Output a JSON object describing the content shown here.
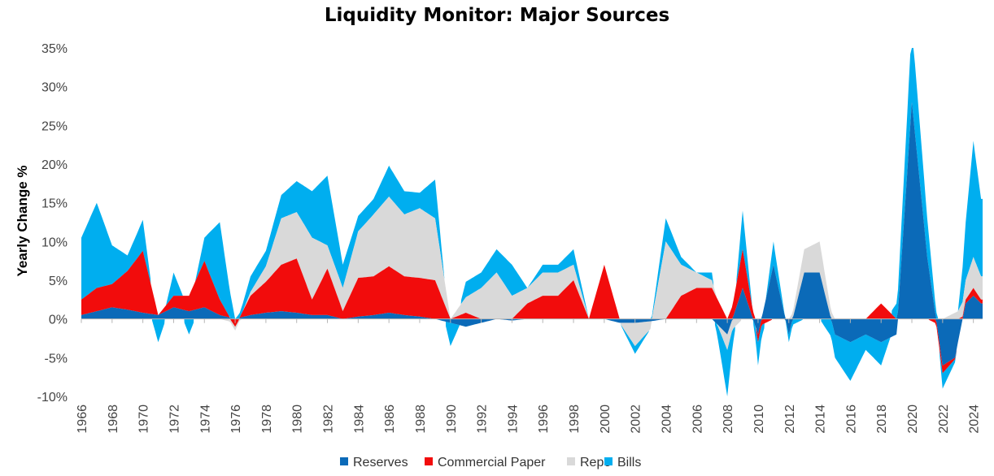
{
  "chart_data": {
    "type": "area",
    "title": "Liquidity Monitor: Major Sources",
    "ylabel": "Yearly Change %",
    "xlabel": "",
    "xlim": [
      1966,
      2024.6
    ],
    "ylim": [
      -10,
      35
    ],
    "yticks": [
      -10,
      -5,
      0,
      5,
      10,
      15,
      20,
      25,
      30,
      35
    ],
    "ytick_labels": [
      "-10%",
      "-5%",
      "0%",
      "5%",
      "10%",
      "15%",
      "20%",
      "25%",
      "30%",
      "35%"
    ],
    "xticks": [
      1966,
      1968,
      1970,
      1972,
      1974,
      1976,
      1978,
      1980,
      1982,
      1984,
      1986,
      1988,
      1990,
      1992,
      1994,
      1996,
      1998,
      2000,
      2002,
      2004,
      2006,
      2008,
      2010,
      2012,
      2014,
      2016,
      2018,
      2020,
      2022,
      2024
    ],
    "xtick_labels": [
      "1966",
      "1968",
      "1970",
      "1972",
      "1974",
      "1976",
      "1978",
      "1980",
      "1982",
      "1984",
      "1986",
      "1988",
      "1990",
      "1992",
      "1994",
      "1996",
      "1998",
      "2000",
      "2002",
      "2004",
      "2006",
      "2008",
      "2010",
      "2012",
      "2014",
      "2016",
      "2018",
      "2020",
      "2022",
      "2024"
    ],
    "stacked": true,
    "grid": false,
    "legend_position": "bottom-center",
    "series": [
      {
        "name": "Reserves",
        "color": "#0B6AB8",
        "points": [
          [
            1966,
            0.5
          ],
          [
            1967,
            1
          ],
          [
            1968,
            1.5
          ],
          [
            1969,
            1.2
          ],
          [
            1970,
            0.8
          ],
          [
            1971,
            0.5
          ],
          [
            1972,
            1.5
          ],
          [
            1973,
            1
          ],
          [
            1974,
            1.5
          ],
          [
            1975,
            0.5
          ],
          [
            1976,
            0
          ],
          [
            1977,
            0.5
          ],
          [
            1978,
            0.8
          ],
          [
            1979,
            1
          ],
          [
            1980,
            0.8
          ],
          [
            1981,
            0.5
          ],
          [
            1982,
            0.5
          ],
          [
            1983,
            0
          ],
          [
            1984,
            0.3
          ],
          [
            1985,
            0.5
          ],
          [
            1986,
            0.8
          ],
          [
            1987,
            0.5
          ],
          [
            1988,
            0.3
          ],
          [
            1989,
            0
          ],
          [
            1990,
            -0.5
          ],
          [
            1991,
            -1
          ],
          [
            1992,
            -0.5
          ],
          [
            1993,
            0
          ],
          [
            1994,
            -0.2
          ],
          [
            1995,
            0
          ],
          [
            1996,
            0
          ],
          [
            1997,
            0
          ],
          [
            1998,
            0
          ],
          [
            1999,
            0
          ],
          [
            2000,
            0
          ],
          [
            2001,
            -0.5
          ],
          [
            2002,
            -0.5
          ],
          [
            2003,
            -0.3
          ],
          [
            2004,
            0
          ],
          [
            2005,
            0
          ],
          [
            2006,
            0
          ],
          [
            2007,
            0
          ],
          [
            2008,
            -2
          ],
          [
            2009,
            4
          ],
          [
            2010,
            -2
          ],
          [
            2011,
            7
          ],
          [
            2012,
            -2
          ],
          [
            2013,
            6
          ],
          [
            2014,
            6
          ],
          [
            2015,
            -2
          ],
          [
            2016,
            -3
          ],
          [
            2017,
            -2
          ],
          [
            2018,
            -3
          ],
          [
            2019,
            -2
          ],
          [
            2020,
            28
          ],
          [
            2021,
            8
          ],
          [
            2022,
            -6
          ],
          [
            2022.8,
            -5
          ],
          [
            2023.5,
            2
          ],
          [
            2024,
            3
          ],
          [
            2024.5,
            2
          ]
        ]
      },
      {
        "name": "Commercial Paper",
        "color": "#F20C0C",
        "points": [
          [
            1966,
            2
          ],
          [
            1967,
            3
          ],
          [
            1968,
            3
          ],
          [
            1969,
            5
          ],
          [
            1970,
            8
          ],
          [
            1971,
            0
          ],
          [
            1972,
            1.5
          ],
          [
            1973,
            2
          ],
          [
            1974,
            6
          ],
          [
            1975,
            2
          ],
          [
            1976,
            -1
          ],
          [
            1977,
            2.5
          ],
          [
            1978,
            4
          ],
          [
            1979,
            6
          ],
          [
            1980,
            7
          ],
          [
            1981,
            2
          ],
          [
            1982,
            6
          ],
          [
            1983,
            1
          ],
          [
            1984,
            5
          ],
          [
            1985,
            5
          ],
          [
            1986,
            6
          ],
          [
            1987,
            5
          ],
          [
            1988,
            5
          ],
          [
            1989,
            5
          ],
          [
            1990,
            0
          ],
          [
            1991,
            0.8
          ],
          [
            1992,
            0
          ],
          [
            1993,
            0
          ],
          [
            1994,
            0
          ],
          [
            1995,
            2
          ],
          [
            1996,
            3
          ],
          [
            1997,
            3
          ],
          [
            1998,
            5
          ],
          [
            1999,
            0
          ],
          [
            2000,
            7
          ],
          [
            2001,
            0
          ],
          [
            2002,
            0
          ],
          [
            2003,
            0
          ],
          [
            2004,
            0
          ],
          [
            2005,
            3
          ],
          [
            2006,
            4
          ],
          [
            2007,
            4
          ],
          [
            2008,
            0
          ],
          [
            2009,
            5
          ],
          [
            2010,
            -1
          ],
          [
            2011,
            0
          ],
          [
            2012,
            0
          ],
          [
            2013,
            0
          ],
          [
            2014,
            0
          ],
          [
            2015,
            0
          ],
          [
            2016,
            0
          ],
          [
            2017,
            0
          ],
          [
            2018,
            2
          ],
          [
            2019,
            0
          ],
          [
            2020,
            0
          ],
          [
            2021,
            0
          ],
          [
            2022,
            -1
          ],
          [
            2023,
            0
          ],
          [
            2024,
            1
          ],
          [
            2024.5,
            0.5
          ]
        ]
      },
      {
        "name": "Repo",
        "color": "#D9D9D9",
        "points": [
          [
            1966,
            0
          ],
          [
            1967,
            0
          ],
          [
            1968,
            0
          ],
          [
            1969,
            0
          ],
          [
            1970,
            0
          ],
          [
            1971,
            0
          ],
          [
            1972,
            0
          ],
          [
            1973,
            0
          ],
          [
            1974,
            0
          ],
          [
            1975,
            0
          ],
          [
            1976,
            -0.5
          ],
          [
            1977,
            0.5
          ],
          [
            1978,
            2
          ],
          [
            1979,
            6
          ],
          [
            1980,
            6
          ],
          [
            1981,
            8
          ],
          [
            1982,
            3
          ],
          [
            1983,
            3
          ],
          [
            1984,
            6
          ],
          [
            1985,
            8
          ],
          [
            1986,
            9
          ],
          [
            1987,
            8
          ],
          [
            1988,
            9
          ],
          [
            1989,
            8
          ],
          [
            1990,
            0
          ],
          [
            1991,
            2
          ],
          [
            1992,
            4
          ],
          [
            1993,
            6
          ],
          [
            1994,
            3
          ],
          [
            1995,
            2
          ],
          [
            1996,
            3
          ],
          [
            1997,
            3
          ],
          [
            1998,
            2
          ],
          [
            1999,
            0
          ],
          [
            2000,
            0
          ],
          [
            2001,
            0
          ],
          [
            2002,
            -3
          ],
          [
            2003,
            -1
          ],
          [
            2004,
            10
          ],
          [
            2005,
            4
          ],
          [
            2006,
            2
          ],
          [
            2007,
            1
          ],
          [
            2008,
            -2
          ],
          [
            2009,
            0
          ],
          [
            2010,
            0
          ],
          [
            2011,
            0
          ],
          [
            2012,
            0
          ],
          [
            2013,
            3
          ],
          [
            2014,
            4
          ],
          [
            2015,
            0
          ],
          [
            2016,
            0
          ],
          [
            2017,
            0
          ],
          [
            2018,
            0
          ],
          [
            2019,
            0
          ],
          [
            2020,
            0
          ],
          [
            2021,
            0
          ],
          [
            2022,
            0
          ],
          [
            2023,
            1
          ],
          [
            2024,
            4
          ],
          [
            2024.5,
            3
          ]
        ]
      },
      {
        "name": "Bills",
        "color": "#00AEEF",
        "points": [
          [
            1966,
            8
          ],
          [
            1967,
            11
          ],
          [
            1968,
            5
          ],
          [
            1969,
            2
          ],
          [
            1970,
            4
          ],
          [
            1971,
            -3
          ],
          [
            1972,
            3
          ],
          [
            1973,
            -2
          ],
          [
            1974,
            3
          ],
          [
            1975,
            10
          ],
          [
            1976,
            0
          ],
          [
            1977,
            2
          ],
          [
            1978,
            2
          ],
          [
            1979,
            3
          ],
          [
            1980,
            4
          ],
          [
            1981,
            6
          ],
          [
            1982,
            9
          ],
          [
            1983,
            3
          ],
          [
            1984,
            2
          ],
          [
            1985,
            2
          ],
          [
            1986,
            4
          ],
          [
            1987,
            3
          ],
          [
            1988,
            2
          ],
          [
            1989,
            5
          ],
          [
            1990,
            -3
          ],
          [
            1991,
            2
          ],
          [
            1992,
            2
          ],
          [
            1993,
            3
          ],
          [
            1994,
            4
          ],
          [
            1995,
            0
          ],
          [
            1996,
            1
          ],
          [
            1997,
            1
          ],
          [
            1998,
            2
          ],
          [
            1999,
            0
          ],
          [
            2000,
            0
          ],
          [
            2001,
            0
          ],
          [
            2002,
            -1
          ],
          [
            2003,
            0
          ],
          [
            2004,
            3
          ],
          [
            2005,
            1
          ],
          [
            2006,
            0
          ],
          [
            2007,
            1
          ],
          [
            2008,
            -6
          ],
          [
            2009,
            5
          ],
          [
            2010,
            -3
          ],
          [
            2011,
            3
          ],
          [
            2012,
            -1
          ],
          [
            2013,
            0
          ],
          [
            2014,
            0
          ],
          [
            2015,
            -3
          ],
          [
            2016,
            -5
          ],
          [
            2017,
            -2
          ],
          [
            2018,
            -3
          ],
          [
            2019,
            2
          ],
          [
            2020,
            10
          ],
          [
            2021,
            5
          ],
          [
            2022,
            -2
          ],
          [
            2023,
            0
          ],
          [
            2024,
            15
          ],
          [
            2024.5,
            10
          ]
        ]
      }
    ]
  }
}
